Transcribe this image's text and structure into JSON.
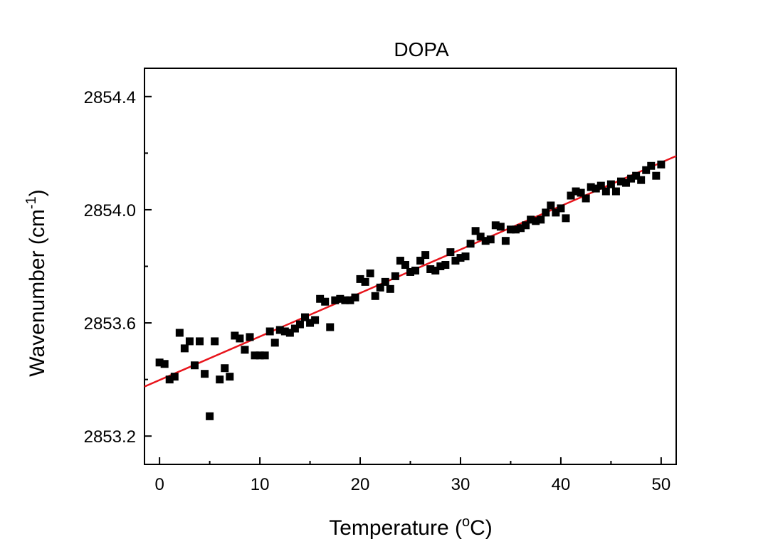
{
  "chart_data": {
    "type": "scatter",
    "title": "DOPA",
    "xlabel": {
      "text": "Temperature (",
      "superscript": "o",
      "after": "C)"
    },
    "ylabel": {
      "text": "Wavenumber (cm",
      "superscript": "-1",
      "after": ")"
    },
    "xlim": [
      -1.5,
      51.5
    ],
    "ylim": [
      2853.1,
      2854.5
    ],
    "x_ticks": [
      0,
      10,
      20,
      30,
      40,
      50
    ],
    "x_tick_labels": [
      "0",
      "10",
      "20",
      "30",
      "40",
      "50"
    ],
    "y_ticks": [
      2853.2,
      2853.6,
      2854.0,
      2854.4
    ],
    "y_tick_labels": [
      "2853.2",
      "2853.6",
      "2854.0",
      "2854.4"
    ],
    "grid": false,
    "marker_color": "#000000",
    "fit_color": "#e8141b",
    "series": [
      {
        "marker": "square",
        "points": [
          [
            0.0,
            2853.46
          ],
          [
            0.5,
            2853.455
          ],
          [
            1.0,
            2853.4
          ],
          [
            1.5,
            2853.41
          ],
          [
            2.0,
            2853.565
          ],
          [
            2.5,
            2853.51
          ],
          [
            3.0,
            2853.535
          ],
          [
            3.5,
            2853.45
          ],
          [
            4.0,
            2853.535
          ],
          [
            4.5,
            2853.42
          ],
          [
            5.0,
            2853.27
          ],
          [
            5.5,
            2853.535
          ],
          [
            6.0,
            2853.4
          ],
          [
            6.5,
            2853.44
          ],
          [
            7.0,
            2853.41
          ],
          [
            7.5,
            2853.555
          ],
          [
            8.0,
            2853.545
          ],
          [
            8.5,
            2853.505
          ],
          [
            9.0,
            2853.55
          ],
          [
            9.5,
            2853.485
          ],
          [
            10.0,
            2853.485
          ],
          [
            10.5,
            2853.485
          ],
          [
            11.0,
            2853.57
          ],
          [
            11.5,
            2853.53
          ],
          [
            12.0,
            2853.575
          ],
          [
            12.5,
            2853.57
          ],
          [
            13.0,
            2853.565
          ],
          [
            13.5,
            2853.58
          ],
          [
            14.0,
            2853.595
          ],
          [
            14.5,
            2853.62
          ],
          [
            15.0,
            2853.6
          ],
          [
            15.5,
            2853.61
          ],
          [
            16.0,
            2853.685
          ],
          [
            16.5,
            2853.675
          ],
          [
            17.0,
            2853.585
          ],
          [
            17.5,
            2853.68
          ],
          [
            18.0,
            2853.685
          ],
          [
            18.5,
            2853.68
          ],
          [
            19.0,
            2853.68
          ],
          [
            19.5,
            2853.69
          ],
          [
            20.0,
            2853.755
          ],
          [
            20.5,
            2853.745
          ],
          [
            21.0,
            2853.775
          ],
          [
            21.5,
            2853.695
          ],
          [
            22.0,
            2853.725
          ],
          [
            22.5,
            2853.745
          ],
          [
            23.0,
            2853.72
          ],
          [
            23.5,
            2853.765
          ],
          [
            24.0,
            2853.82
          ],
          [
            24.5,
            2853.805
          ],
          [
            25.0,
            2853.78
          ],
          [
            25.5,
            2853.785
          ],
          [
            26.0,
            2853.82
          ],
          [
            26.5,
            2853.84
          ],
          [
            27.0,
            2853.79
          ],
          [
            27.5,
            2853.785
          ],
          [
            28.0,
            2853.8
          ],
          [
            28.5,
            2853.805
          ],
          [
            29.0,
            2853.85
          ],
          [
            29.5,
            2853.82
          ],
          [
            30.0,
            2853.83
          ],
          [
            30.5,
            2853.835
          ],
          [
            31.0,
            2853.88
          ],
          [
            31.5,
            2853.925
          ],
          [
            32.0,
            2853.905
          ],
          [
            32.5,
            2853.89
          ],
          [
            33.0,
            2853.895
          ],
          [
            33.5,
            2853.945
          ],
          [
            34.0,
            2853.94
          ],
          [
            34.5,
            2853.89
          ],
          [
            35.0,
            2853.93
          ],
          [
            35.5,
            2853.93
          ],
          [
            36.0,
            2853.935
          ],
          [
            36.5,
            2853.945
          ],
          [
            37.0,
            2853.965
          ],
          [
            37.5,
            2853.96
          ],
          [
            38.0,
            2853.965
          ],
          [
            38.5,
            2853.99
          ],
          [
            39.0,
            2854.015
          ],
          [
            39.5,
            2853.99
          ],
          [
            40.0,
            2854.005
          ],
          [
            40.5,
            2853.97
          ],
          [
            41.0,
            2854.05
          ],
          [
            41.5,
            2854.065
          ],
          [
            42.0,
            2854.06
          ],
          [
            42.5,
            2854.04
          ],
          [
            43.0,
            2854.08
          ],
          [
            43.5,
            2854.075
          ],
          [
            44.0,
            2854.085
          ],
          [
            44.5,
            2854.065
          ],
          [
            45.0,
            2854.09
          ],
          [
            45.5,
            2854.065
          ],
          [
            46.0,
            2854.1
          ],
          [
            46.5,
            2854.095
          ],
          [
            47.0,
            2854.11
          ],
          [
            47.5,
            2854.12
          ],
          [
            48.0,
            2854.105
          ],
          [
            48.5,
            2854.14
          ],
          [
            49.0,
            2854.155
          ],
          [
            49.5,
            2854.12
          ],
          [
            50.0,
            2854.16
          ]
        ]
      }
    ],
    "fit_line": {
      "x": [
        -1.5,
        51.5
      ],
      "y": [
        2853.375,
        2854.19
      ]
    }
  }
}
